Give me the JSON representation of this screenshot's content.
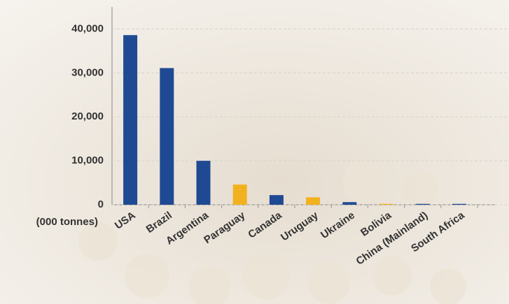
{
  "chart_data": {
    "type": "bar",
    "y_label": "(000 tonnes)",
    "categories": [
      "USA",
      "Brazil",
      "Argentina",
      "Paraguay",
      "Canada",
      "Uruguay",
      "Ukraine",
      "Bolivia",
      "China (Mainland)",
      "South Africa"
    ],
    "values": [
      38600,
      31100,
      10000,
      4600,
      2200,
      1700,
      600,
      200,
      200,
      200
    ],
    "colors": [
      "#1f4a93",
      "#1f4a93",
      "#1f4a93",
      "#f2b21f",
      "#1f4a93",
      "#f2b21f",
      "#1f4a93",
      "#f2b21f",
      "#1f4a93",
      "#1f4a93"
    ],
    "ylim": [
      0,
      45000
    ],
    "yticks": [
      {
        "value": 0,
        "label": "0"
      },
      {
        "value": 10000,
        "label": "10,000"
      },
      {
        "value": 20000,
        "label": "20,000"
      },
      {
        "value": 30000,
        "label": "30,000"
      },
      {
        "value": 40000,
        "label": "40,000"
      }
    ],
    "grid": true
  }
}
